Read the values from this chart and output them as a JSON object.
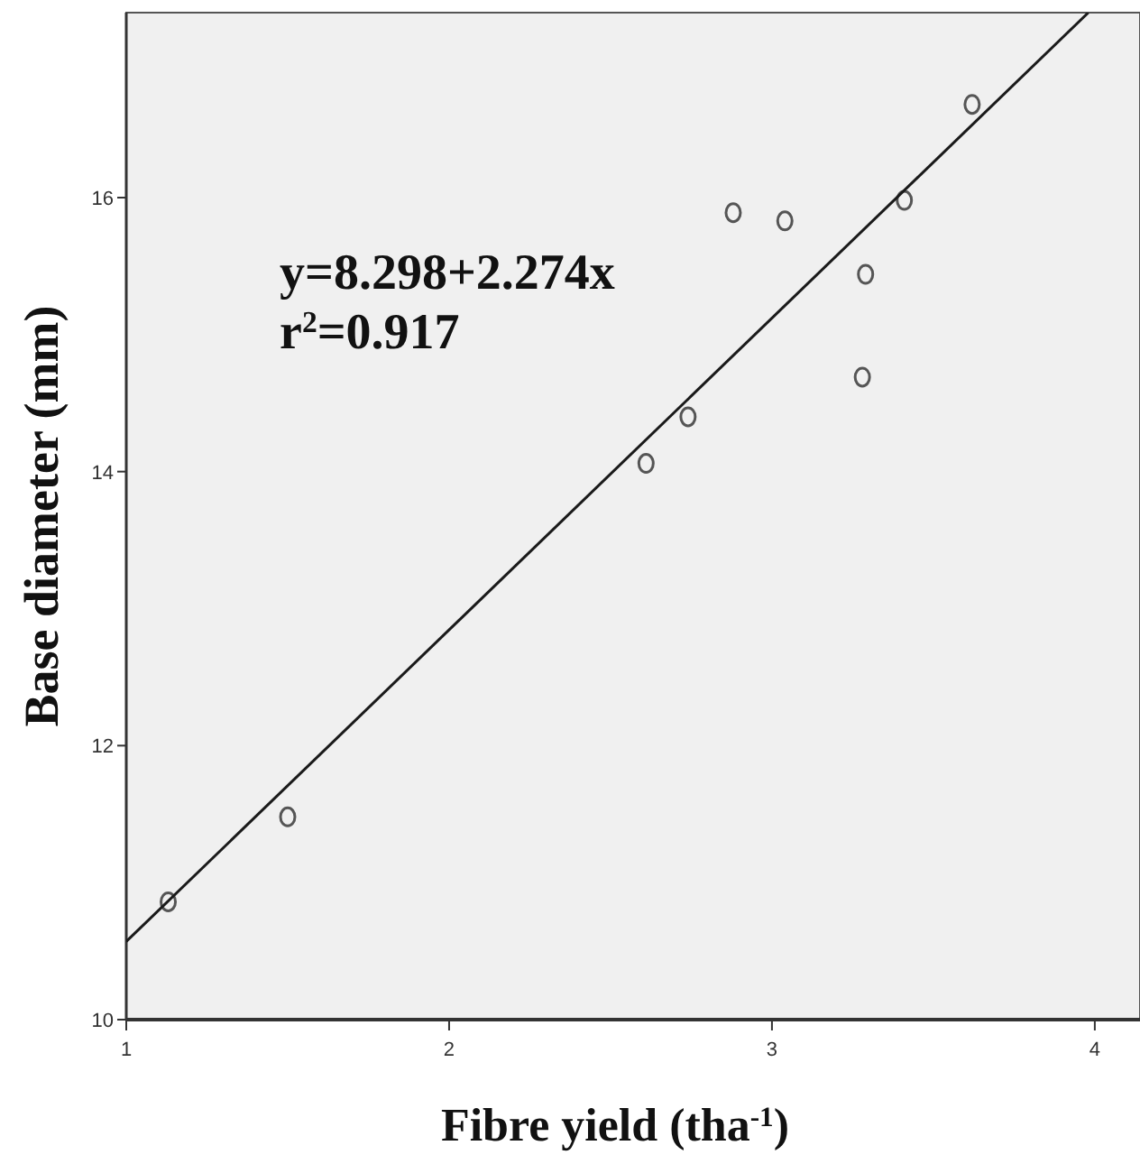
{
  "chart_data": {
    "type": "scatter",
    "xlabel": "Fibre yield (tha$^{-1}$)",
    "ylabel": "Base diameter (mm)",
    "xlim": [
      1,
      4.14
    ],
    "ylim": [
      10,
      17.35
    ],
    "xticks": [
      1,
      2,
      3,
      4
    ],
    "yticks": [
      10,
      12,
      14,
      16
    ],
    "grid": false,
    "marker": "circle",
    "annotations": [
      "y=8.298+2.274x",
      "r$^{2}$=0.917"
    ],
    "series": [
      {
        "color": "#555555",
        "x": [
          1.13,
          1.5,
          2.61,
          2.74,
          2.88,
          3.04,
          3.29,
          3.28,
          3.41,
          3.62
        ],
        "values": [
          10.86,
          11.48,
          14.06,
          14.4,
          15.89,
          15.83,
          15.44,
          14.69,
          15.98,
          16.68
        ]
      },
      {
        "type": "line",
        "color": "#1a1a1a",
        "marker": "none",
        "line_style": "solid",
        "x": [
          1,
          3.98
        ],
        "values": [
          10.57,
          17.35
        ]
      }
    ]
  }
}
